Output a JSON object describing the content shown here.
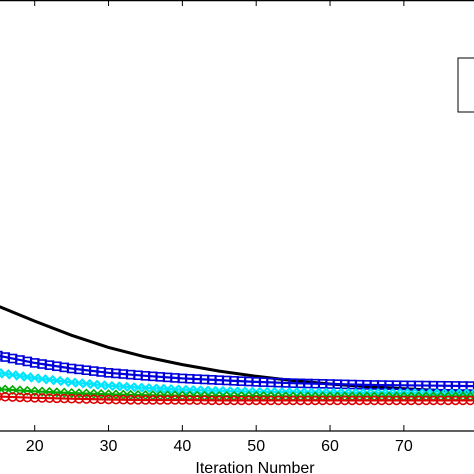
{
  "chart_data": {
    "type": "line",
    "title": "",
    "xlabel": "Iteration Number",
    "ylabel": "",
    "xlim": [
      15.3,
      79.5
    ],
    "ylim": [
      0,
      1
    ],
    "x_ticks": [
      20,
      30,
      40,
      50,
      60,
      70
    ],
    "x_tick_labels": [
      "20",
      "30",
      "40",
      "50",
      "60",
      "70"
    ],
    "grid": false,
    "legend": "top-right (cropped, entries not visible)",
    "series": [
      {
        "color": "#000000",
        "marker": "none",
        "x": [
          15,
          20,
          25,
          30,
          35,
          40,
          45,
          50,
          55,
          60,
          65,
          70,
          75,
          80
        ],
        "values": [
          0.29,
          0.255,
          0.222,
          0.194,
          0.172,
          0.154,
          0.139,
          0.127,
          0.117,
          0.109,
          0.103,
          0.098,
          0.094,
          0.091
        ]
      },
      {
        "color": "#0000dd",
        "marker": "square",
        "x": [
          15,
          20,
          25,
          30,
          35,
          40,
          45,
          50,
          55,
          60,
          65,
          70,
          75,
          80
        ],
        "values": [
          0.175,
          0.158,
          0.145,
          0.135,
          0.128,
          0.122,
          0.118,
          0.114,
          0.111,
          0.109,
          0.107,
          0.106,
          0.105,
          0.104
        ]
      },
      {
        "color": "#00e5ff",
        "marker": "x",
        "x": [
          15,
          20,
          25,
          30,
          35,
          40,
          45,
          50,
          55,
          60,
          65,
          70,
          75,
          80
        ],
        "values": [
          0.135,
          0.123,
          0.113,
          0.105,
          0.1,
          0.096,
          0.093,
          0.091,
          0.09,
          0.089,
          0.088,
          0.088,
          0.087,
          0.087
        ]
      },
      {
        "color": "#00aa00",
        "marker": "diamond",
        "x": [
          15,
          20,
          25,
          30,
          35,
          40,
          45,
          50,
          55,
          60,
          65,
          70,
          75,
          80
        ],
        "values": [
          0.097,
          0.092,
          0.088,
          0.085,
          0.083,
          0.082,
          0.081,
          0.081,
          0.08,
          0.08,
          0.08,
          0.08,
          0.08,
          0.08
        ]
      },
      {
        "color": "#dd0000",
        "marker": "circle",
        "x": [
          15,
          20,
          25,
          30,
          35,
          40,
          45,
          50,
          55,
          60,
          65,
          70,
          75,
          80
        ],
        "values": [
          0.08,
          0.077,
          0.075,
          0.073,
          0.072,
          0.072,
          0.071,
          0.071,
          0.071,
          0.071,
          0.071,
          0.071,
          0.071,
          0.071
        ]
      }
    ]
  }
}
